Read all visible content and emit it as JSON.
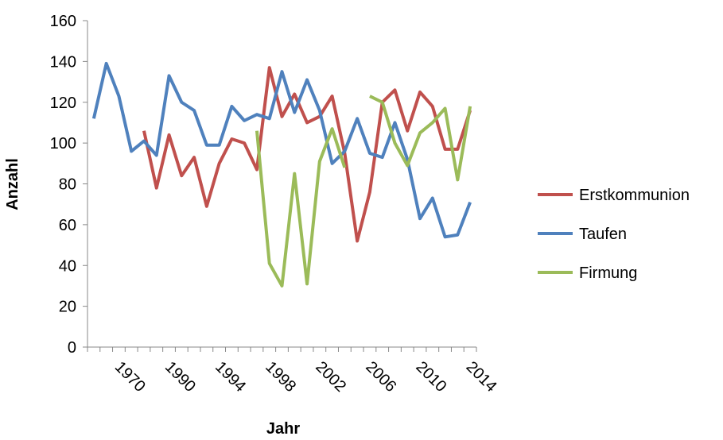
{
  "chart_data": {
    "type": "line",
    "y_label": "Anzahl",
    "x_label": "Jahr",
    "categories": [
      null,
      null,
      "1970",
      null,
      null,
      null,
      "1990",
      null,
      null,
      null,
      "1994",
      null,
      null,
      null,
      "1998",
      null,
      null,
      null,
      "2002",
      null,
      null,
      null,
      "2006",
      null,
      null,
      null,
      "2010",
      null,
      null,
      null,
      "2014"
    ],
    "series": [
      {
        "name": "Erstkommunion",
        "color": "#c0504d",
        "values": [
          null,
          null,
          null,
          null,
          106,
          78,
          104,
          84,
          93,
          69,
          90,
          102,
          100,
          87,
          137,
          113,
          124,
          110,
          113,
          123,
          95,
          52,
          76,
          120,
          126,
          106,
          125,
          118,
          97,
          97,
          116
        ]
      },
      {
        "name": "Taufen",
        "color": "#4f81bd",
        "values": [
          112,
          139,
          123,
          96,
          101,
          94,
          133,
          120,
          116,
          99,
          99,
          118,
          111,
          114,
          112,
          135,
          115,
          131,
          116,
          90,
          96,
          112,
          95,
          93,
          110,
          92,
          63,
          73,
          54,
          55,
          71
        ]
      },
      {
        "name": "Firmung",
        "color": "#9bbb59",
        "values": [
          null,
          null,
          null,
          null,
          null,
          null,
          null,
          null,
          null,
          null,
          null,
          null,
          null,
          106,
          41,
          30,
          85,
          31,
          91,
          107,
          88,
          null,
          123,
          120,
          100,
          89,
          105,
          110,
          117,
          82,
          118
        ]
      }
    ],
    "ylim": [
      0,
      160
    ],
    "yticks": [
      0,
      20,
      40,
      60,
      80,
      100,
      120,
      140,
      160
    ],
    "legend": "right"
  }
}
